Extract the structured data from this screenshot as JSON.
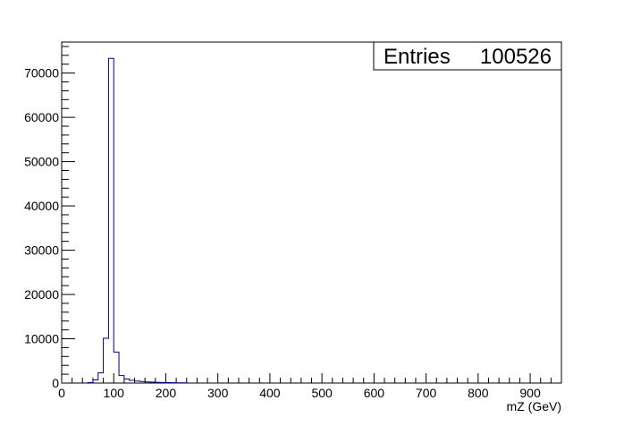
{
  "chart_data": {
    "type": "bar",
    "title": "",
    "xlabel": "mZ (GeV)",
    "ylabel": "",
    "xlim": [
      0,
      960
    ],
    "ylim": [
      0,
      77000
    ],
    "bin_width": 10,
    "x_ticks": [
      0,
      100,
      200,
      300,
      400,
      500,
      600,
      700,
      800,
      900
    ],
    "y_ticks": [
      0,
      10000,
      20000,
      30000,
      40000,
      50000,
      60000,
      70000
    ],
    "x_tick_labels": [
      "0",
      "100",
      "200",
      "300",
      "400",
      "500",
      "600",
      "700",
      "800",
      "900"
    ],
    "y_tick_labels": [
      "0",
      "10000",
      "20000",
      "30000",
      "40000",
      "50000",
      "60000",
      "70000"
    ],
    "grid": false,
    "line_color": "#000080",
    "bins": [
      {
        "x": 50,
        "value": 100
      },
      {
        "x": 60,
        "value": 700
      },
      {
        "x": 70,
        "value": 2300
      },
      {
        "x": 80,
        "value": 10100
      },
      {
        "x": 90,
        "value": 73300
      },
      {
        "x": 100,
        "value": 7000
      },
      {
        "x": 110,
        "value": 1700
      },
      {
        "x": 120,
        "value": 900
      },
      {
        "x": 130,
        "value": 600
      },
      {
        "x": 140,
        "value": 450
      },
      {
        "x": 150,
        "value": 350
      },
      {
        "x": 160,
        "value": 250
      },
      {
        "x": 170,
        "value": 200
      },
      {
        "x": 180,
        "value": 150
      },
      {
        "x": 190,
        "value": 120
      },
      {
        "x": 200,
        "value": 100
      },
      {
        "x": 210,
        "value": 80
      },
      {
        "x": 220,
        "value": 60
      },
      {
        "x": 230,
        "value": 40
      }
    ],
    "stats": {
      "label": "Entries",
      "value": "100526"
    }
  }
}
